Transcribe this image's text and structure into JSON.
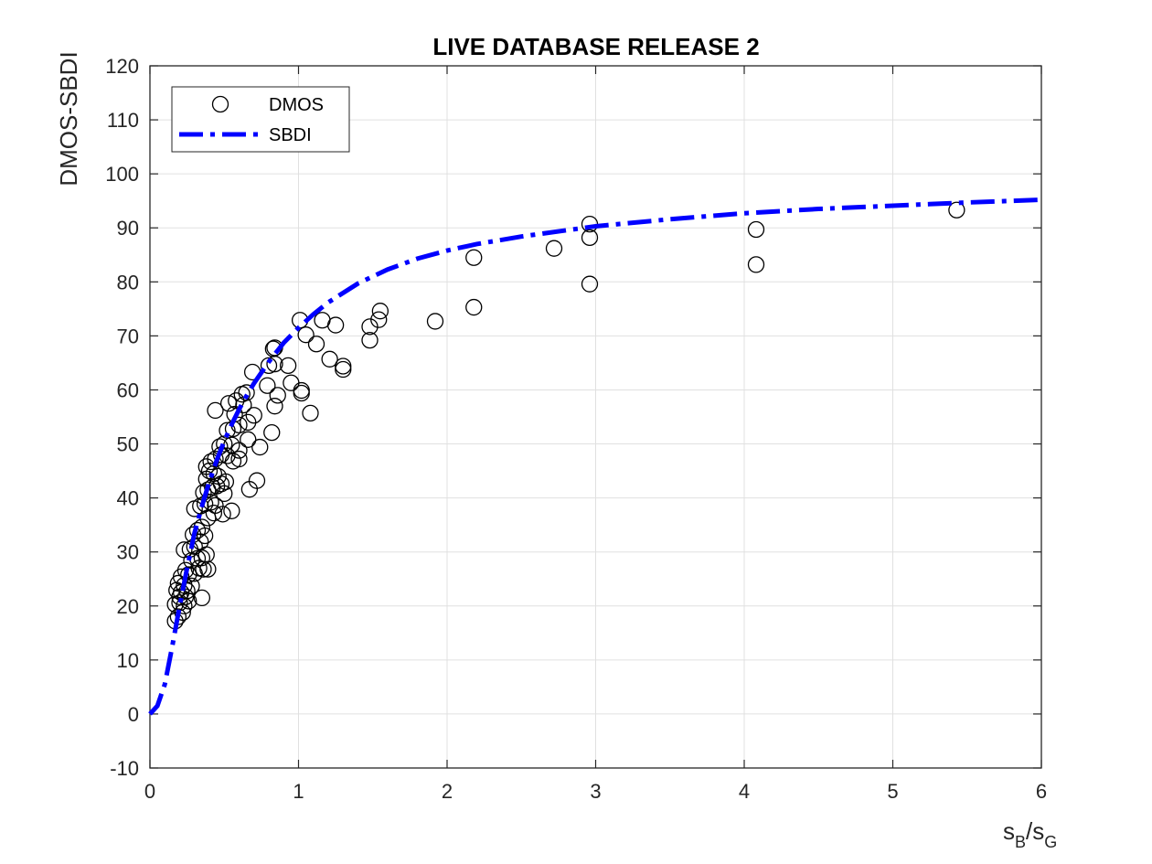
{
  "chart_data": {
    "type": "scatter",
    "title": "LIVE DATABASE RELEASE 2",
    "ylabel": "DMOS-SBDI",
    "xlabel": {
      "base1": "s",
      "sub1": "B",
      "sep": "/",
      "base2": "s",
      "sub2": "G"
    },
    "xlim": [
      0,
      6
    ],
    "ylim": [
      -10,
      120
    ],
    "xticks": [
      0,
      1,
      2,
      3,
      4,
      5,
      6
    ],
    "yticks": [
      -10,
      0,
      10,
      20,
      30,
      40,
      50,
      60,
      70,
      80,
      90,
      100,
      110,
      120
    ],
    "grid": true,
    "legend_location": "top-left",
    "legend": [
      {
        "label": "DMOS",
        "style": "circle-marker"
      },
      {
        "label": "SBDI",
        "style": "dash-dot-line"
      }
    ],
    "colors": {
      "scatter": "#000000",
      "curve": "#0000ff",
      "grid": "#e0e0e0",
      "axis": "#262626"
    },
    "series": [
      {
        "name": "DMOS",
        "kind": "scatter",
        "points": [
          [
            0.17,
            17.2
          ],
          [
            0.19,
            18.0
          ],
          [
            0.22,
            18.8
          ],
          [
            0.17,
            20.3
          ],
          [
            0.2,
            20.6
          ],
          [
            0.23,
            20.0
          ],
          [
            0.26,
            20.9
          ],
          [
            0.2,
            21.7
          ],
          [
            0.24,
            21.7
          ],
          [
            0.18,
            22.9
          ],
          [
            0.21,
            22.5
          ],
          [
            0.25,
            22.8
          ],
          [
            0.19,
            24.2
          ],
          [
            0.23,
            23.8
          ],
          [
            0.28,
            23.7
          ],
          [
            0.21,
            25.4
          ],
          [
            0.26,
            25.8
          ],
          [
            0.3,
            26.0
          ],
          [
            0.24,
            26.6
          ],
          [
            0.33,
            27.0
          ],
          [
            0.36,
            26.8
          ],
          [
            0.39,
            26.8
          ],
          [
            0.28,
            28.4
          ],
          [
            0.32,
            28.8
          ],
          [
            0.35,
            28.9
          ],
          [
            0.38,
            29.5
          ],
          [
            0.23,
            30.4
          ],
          [
            0.27,
            30.5
          ],
          [
            0.3,
            31.0
          ],
          [
            0.34,
            31.9
          ],
          [
            0.37,
            33.0
          ],
          [
            0.29,
            33.2
          ],
          [
            0.32,
            34.0
          ],
          [
            0.35,
            34.6
          ],
          [
            0.39,
            36.3
          ],
          [
            0.43,
            37.2
          ],
          [
            0.3,
            38.0
          ],
          [
            0.34,
            38.5
          ],
          [
            0.37,
            38.9
          ],
          [
            0.41,
            39.2
          ],
          [
            0.44,
            38.6
          ],
          [
            0.49,
            37.0
          ],
          [
            0.55,
            37.6
          ],
          [
            0.35,
            21.5
          ],
          [
            0.36,
            41.0
          ],
          [
            0.39,
            41.5
          ],
          [
            0.42,
            42.0
          ],
          [
            0.45,
            42.2
          ],
          [
            0.48,
            42.6
          ],
          [
            0.51,
            43.0
          ],
          [
            0.38,
            43.5
          ],
          [
            0.4,
            45.0
          ],
          [
            0.43,
            44.5
          ],
          [
            0.46,
            44.0
          ],
          [
            0.38,
            45.8
          ],
          [
            0.41,
            46.7
          ],
          [
            0.44,
            47.2
          ],
          [
            0.48,
            48.0
          ],
          [
            0.52,
            47.8
          ],
          [
            0.56,
            46.8
          ],
          [
            0.6,
            47.2
          ],
          [
            0.47,
            49.5
          ],
          [
            0.5,
            50.0
          ],
          [
            0.55,
            49.8
          ],
          [
            0.6,
            48.8
          ],
          [
            0.52,
            52.5
          ],
          [
            0.56,
            52.8
          ],
          [
            0.6,
            53.5
          ],
          [
            0.66,
            54.0
          ],
          [
            0.7,
            55.3
          ],
          [
            0.57,
            55.5
          ],
          [
            0.63,
            57.2
          ],
          [
            0.66,
            50.8
          ],
          [
            0.74,
            49.4
          ],
          [
            0.53,
            57.5
          ],
          [
            0.58,
            58.0
          ],
          [
            0.62,
            59.2
          ],
          [
            0.65,
            59.5
          ],
          [
            0.44,
            56.2
          ],
          [
            0.67,
            41.6
          ],
          [
            0.72,
            43.2
          ],
          [
            0.5,
            40.8
          ],
          [
            0.69,
            63.3
          ],
          [
            0.79,
            60.8
          ],
          [
            0.82,
            52.1
          ],
          [
            0.84,
            57.0
          ],
          [
            0.86,
            59.0
          ],
          [
            0.8,
            64.5
          ],
          [
            0.84,
            64.8
          ],
          [
            0.83,
            67.6
          ],
          [
            0.84,
            67.8
          ],
          [
            0.93,
            64.5
          ],
          [
            0.95,
            61.3
          ],
          [
            1.01,
            72.9
          ],
          [
            1.02,
            59.9
          ],
          [
            1.02,
            59.4
          ],
          [
            1.05,
            70.2
          ],
          [
            1.08,
            55.7
          ],
          [
            1.12,
            68.5
          ],
          [
            1.16,
            72.9
          ],
          [
            1.21,
            65.7
          ],
          [
            1.25,
            72.0
          ],
          [
            1.3,
            64.4
          ],
          [
            1.3,
            63.8
          ],
          [
            1.48,
            69.2
          ],
          [
            1.48,
            71.7
          ],
          [
            1.54,
            73.0
          ],
          [
            1.55,
            74.6
          ],
          [
            1.92,
            72.7
          ],
          [
            2.18,
            84.5
          ],
          [
            2.18,
            75.3
          ],
          [
            2.72,
            86.2
          ],
          [
            2.96,
            90.7
          ],
          [
            2.96,
            88.2
          ],
          [
            2.96,
            79.6
          ],
          [
            4.08,
            89.7
          ],
          [
            4.08,
            83.2
          ],
          [
            5.43,
            93.3
          ]
        ]
      },
      {
        "name": "SBDI",
        "kind": "line",
        "points": [
          [
            0,
            0
          ],
          [
            0.05,
            1.5
          ],
          [
            0.1,
            5.5
          ],
          [
            0.15,
            12.5
          ],
          [
            0.2,
            20.0
          ],
          [
            0.25,
            27.0
          ],
          [
            0.3,
            33.5
          ],
          [
            0.35,
            38.5
          ],
          [
            0.4,
            43.0
          ],
          [
            0.45,
            47.0
          ],
          [
            0.5,
            50.5
          ],
          [
            0.55,
            53.6
          ],
          [
            0.6,
            56.4
          ],
          [
            0.65,
            58.9
          ],
          [
            0.7,
            61.2
          ],
          [
            0.8,
            65.2
          ],
          [
            0.9,
            68.7
          ],
          [
            1.0,
            71.5
          ],
          [
            1.1,
            74.0
          ],
          [
            1.2,
            76.2
          ],
          [
            1.4,
            79.7
          ],
          [
            1.6,
            82.3
          ],
          [
            1.8,
            84.3
          ],
          [
            2.0,
            85.8
          ],
          [
            2.2,
            87.0
          ],
          [
            2.5,
            88.4
          ],
          [
            3.0,
            90.3
          ],
          [
            3.5,
            91.6
          ],
          [
            4.0,
            92.7
          ],
          [
            4.5,
            93.5
          ],
          [
            5.0,
            94.1
          ],
          [
            5.5,
            94.7
          ],
          [
            6.0,
            95.2
          ]
        ]
      }
    ]
  }
}
